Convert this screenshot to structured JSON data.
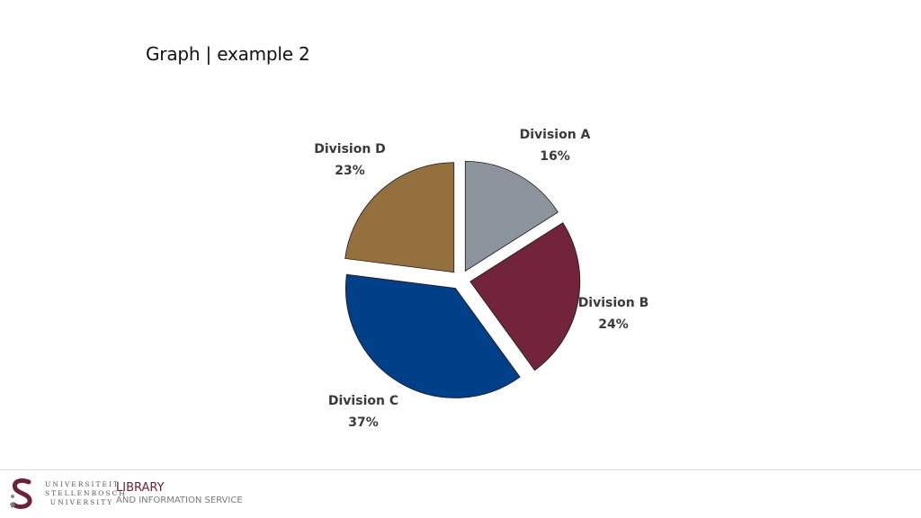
{
  "slide": {
    "title": "Graph | example 2"
  },
  "chart_data": {
    "type": "pie",
    "title": "",
    "categories": [
      "Division A",
      "Division B",
      "Division C",
      "Division D"
    ],
    "values": [
      16,
      24,
      37,
      23
    ],
    "value_labels": [
      "16%",
      "24%",
      "37%",
      "23%"
    ],
    "colors": [
      "#8c959e",
      "#72243b",
      "#013f88",
      "#94703f"
    ],
    "exploded": true,
    "start": "12 o'clock, clockwise"
  },
  "footer": {
    "university": [
      "UNIVERSITEIT",
      "STELLENBOSCH",
      "UNIVERSITY"
    ],
    "library": "LIBRARY",
    "service": "AND INFORMATION SERVICE"
  }
}
